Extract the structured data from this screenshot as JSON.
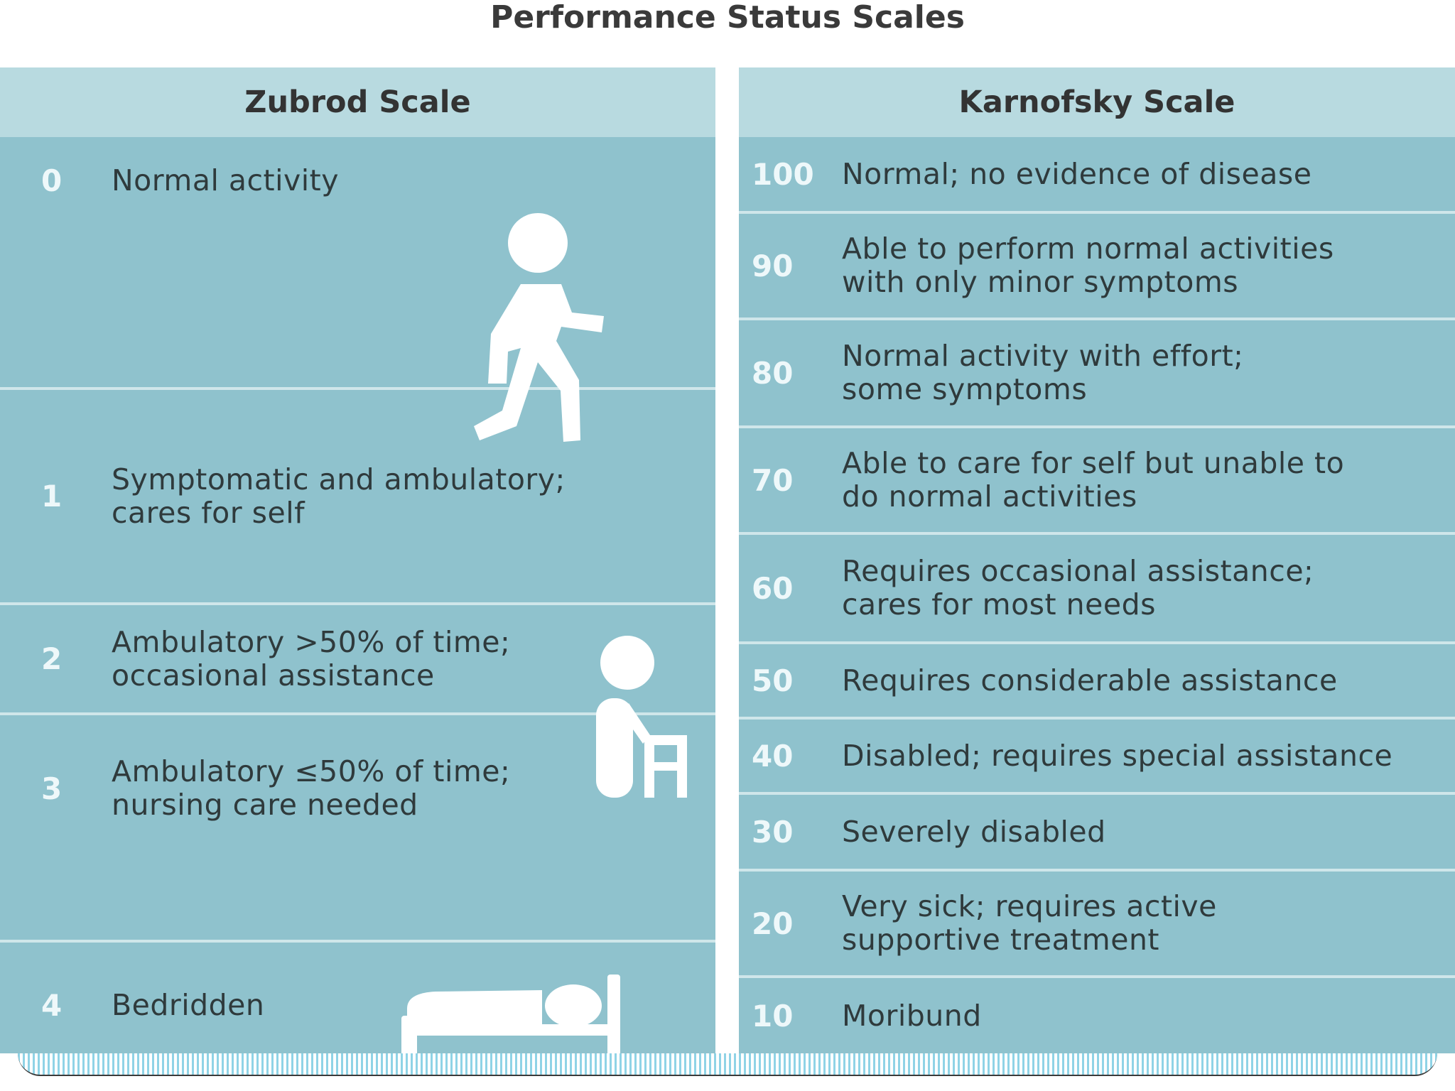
{
  "title": "Performance Status Scales",
  "zubrod": {
    "header": "Zubrod Scale",
    "rows": [
      {
        "num": "0",
        "text": "Normal activity"
      },
      {
        "num": "1",
        "text": "Symptomatic and ambulatory;\ncares for self"
      },
      {
        "num": "2",
        "text": "Ambulatory >50% of time;\noccasional assistance"
      },
      {
        "num": "3",
        "text": "Ambulatory ≤50% of time;\nnursing care needed"
      },
      {
        "num": "4",
        "text": "Bedridden"
      }
    ]
  },
  "karnofsky": {
    "header": "Karnofsky Scale",
    "rows": [
      {
        "num": "100",
        "text": "Normal; no evidence of disease"
      },
      {
        "num": "90",
        "text": "Able to perform normal activities\nwith only minor symptoms"
      },
      {
        "num": "80",
        "text": "Normal activity with effort;\nsome symptoms"
      },
      {
        "num": "70",
        "text": "Able to care for self but unable to\ndo normal activities"
      },
      {
        "num": "60",
        "text": "Requires occasional assistance;\ncares for most needs"
      },
      {
        "num": "50",
        "text": "Requires considerable assistance"
      },
      {
        "num": "40",
        "text": "Disabled; requires special assistance"
      },
      {
        "num": "30",
        "text": "Severely disabled"
      },
      {
        "num": "20",
        "text": "Very sick; requires active\nsupportive treatment"
      },
      {
        "num": "10",
        "text": "Moribund"
      }
    ]
  },
  "icons": [
    "walking-person-icon",
    "person-with-walker-icon",
    "bed-icon"
  ],
  "colors": {
    "panel": "#8fc2cd",
    "header": "#b8dae0",
    "divider": "#cfe6ea",
    "number": "#eef8fa",
    "text": "#2f3a3c"
  }
}
